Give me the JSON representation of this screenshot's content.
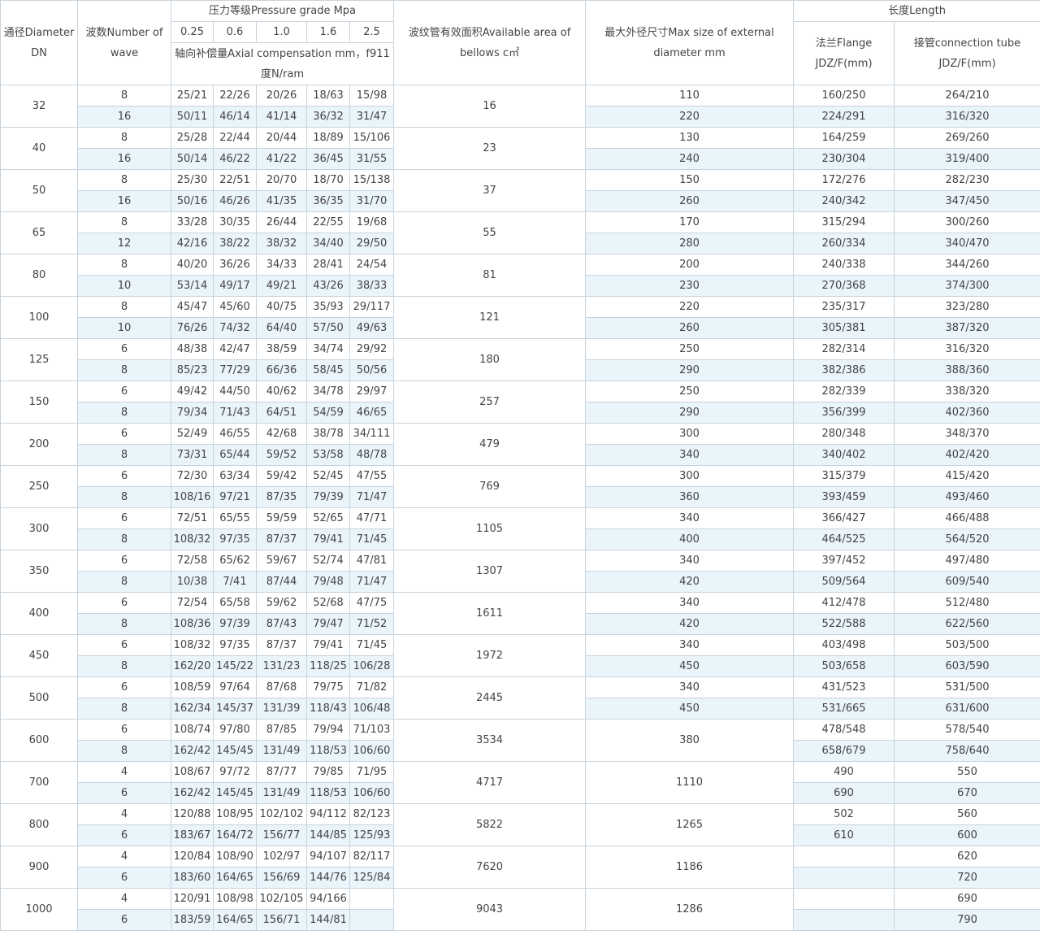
{
  "header": {
    "diameter": "通径Diameter DN",
    "waves": "波数Number of wave",
    "pressure_grade": "压力等级Pressure grade Mpa",
    "pressure_values": [
      "0.25",
      "0.6",
      "1.0",
      "1.6",
      "2.5"
    ],
    "axial": "轴向补偿量Axial compensation mm，f911度N/ram",
    "area": "波纹管有效面积Available area of bellows c㎡",
    "max_size": "最大外径尺寸Max size of external diameter mm",
    "length": "长度Length",
    "flange": "法兰Flange JDZ/F(mm)",
    "tube": "接管connection tube JDZ/F(mm)"
  },
  "groups": [
    {
      "dn": 32,
      "area": 16,
      "max_size": [
        110,
        220
      ],
      "rows": [
        {
          "waves": 8,
          "comp": [
            "25/21",
            "22/26",
            "20/26",
            "18/63",
            "15/98"
          ],
          "flange": "160/250",
          "tube": "264/210"
        },
        {
          "waves": 16,
          "comp": [
            "50/11",
            "46/14",
            "41/14",
            "36/32",
            "31/47"
          ],
          "flange": "224/291",
          "tube": "316/320"
        }
      ]
    },
    {
      "dn": 40,
      "area": 23,
      "max_size": [
        130,
        240
      ],
      "rows": [
        {
          "waves": 8,
          "comp": [
            "25/28",
            "22/44",
            "20/44",
            "18/89",
            "15/106"
          ],
          "flange": "164/259",
          "tube": "269/260"
        },
        {
          "waves": 16,
          "comp": [
            "50/14",
            "46/22",
            "41/22",
            "36/45",
            "31/55"
          ],
          "flange": "230/304",
          "tube": "319/400"
        }
      ]
    },
    {
      "dn": 50,
      "area": 37,
      "max_size": [
        150,
        260
      ],
      "rows": [
        {
          "waves": 8,
          "comp": [
            "25/30",
            "22/51",
            "20/70",
            "18/70",
            "15/138"
          ],
          "flange": "172/276",
          "tube": "282/230"
        },
        {
          "waves": 16,
          "comp": [
            "50/16",
            "46/26",
            "41/35",
            "36/35",
            "31/70"
          ],
          "flange": "240/342",
          "tube": "347/450"
        }
      ]
    },
    {
      "dn": 65,
      "area": 55,
      "max_size": [
        170,
        280
      ],
      "rows": [
        {
          "waves": 8,
          "comp": [
            "33/28",
            "30/35",
            "26/44",
            "22/55",
            "19/68"
          ],
          "flange": "315/294",
          "tube": "300/260"
        },
        {
          "waves": 12,
          "comp": [
            "42/16",
            "38/22",
            "38/32",
            "34/40",
            "29/50"
          ],
          "flange": "260/334",
          "tube": "340/470"
        }
      ]
    },
    {
      "dn": 80,
      "area": 81,
      "max_size": [
        200,
        230
      ],
      "rows": [
        {
          "waves": 8,
          "comp": [
            "40/20",
            "36/26",
            "34/33",
            "28/41",
            "24/54"
          ],
          "flange": "240/338",
          "tube": "344/260"
        },
        {
          "waves": 10,
          "comp": [
            "53/14",
            "49/17",
            "49/21",
            "43/26",
            "38/33"
          ],
          "flange": "270/368",
          "tube": "374/300"
        }
      ]
    },
    {
      "dn": 100,
      "area": 121,
      "max_size": [
        220,
        260
      ],
      "rows": [
        {
          "waves": 8,
          "comp": [
            "45/47",
            "45/60",
            "40/75",
            "35/93",
            "29/117"
          ],
          "flange": "235/317",
          "tube": "323/280"
        },
        {
          "waves": 10,
          "comp": [
            "76/26",
            "74/32",
            "64/40",
            "57/50",
            "49/63"
          ],
          "flange": "305/381",
          "tube": "387/320"
        }
      ]
    },
    {
      "dn": 125,
      "area": 180,
      "max_size": [
        250,
        290
      ],
      "rows": [
        {
          "waves": 6,
          "comp": [
            "48/38",
            "42/47",
            "38/59",
            "34/74",
            "29/92"
          ],
          "flange": "282/314",
          "tube": "316/320"
        },
        {
          "waves": 8,
          "comp": [
            "85/23",
            "77/29",
            "66/36",
            "58/45",
            "50/56"
          ],
          "flange": "382/386",
          "tube": "388/360"
        }
      ]
    },
    {
      "dn": 150,
      "area": 257,
      "max_size": [
        250,
        290
      ],
      "rows": [
        {
          "waves": 6,
          "comp": [
            "49/42",
            "44/50",
            "40/62",
            "34/78",
            "29/97"
          ],
          "flange": "282/339",
          "tube": "338/320"
        },
        {
          "waves": 8,
          "comp": [
            "79/34",
            "71/43",
            "64/51",
            "54/59",
            "46/65"
          ],
          "flange": "356/399",
          "tube": "402/360"
        }
      ]
    },
    {
      "dn": 200,
      "area": 479,
      "max_size": [
        300,
        340
      ],
      "rows": [
        {
          "waves": 6,
          "comp": [
            "52/49",
            "46/55",
            "42/68",
            "38/78",
            "34/111"
          ],
          "flange": "280/348",
          "tube": "348/370"
        },
        {
          "waves": 8,
          "comp": [
            "73/31",
            "65/44",
            "59/52",
            "53/58",
            "48/78"
          ],
          "flange": "340/402",
          "tube": "402/420"
        }
      ]
    },
    {
      "dn": 250,
      "area": 769,
      "max_size": [
        300,
        360
      ],
      "rows": [
        {
          "waves": 6,
          "comp": [
            "72/30",
            "63/34",
            "59/42",
            "52/45",
            "47/55"
          ],
          "flange": "315/379",
          "tube": "415/420"
        },
        {
          "waves": 8,
          "comp": [
            "108/16",
            "97/21",
            "87/35",
            "79/39",
            "71/47"
          ],
          "flange": "393/459",
          "tube": "493/460"
        }
      ]
    },
    {
      "dn": 300,
      "area": 1105,
      "max_size": [
        340,
        400
      ],
      "rows": [
        {
          "waves": 6,
          "comp": [
            "72/51",
            "65/55",
            "59/59",
            "52/65",
            "47/71"
          ],
          "flange": "366/427",
          "tube": "466/488"
        },
        {
          "waves": 8,
          "comp": [
            "108/32",
            "97/35",
            "87/37",
            "79/41",
            "71/45"
          ],
          "flange": "464/525",
          "tube": "564/520"
        }
      ]
    },
    {
      "dn": 350,
      "area": 1307,
      "max_size": [
        340,
        420
      ],
      "rows": [
        {
          "waves": 6,
          "comp": [
            "72/58",
            "65/62",
            "59/67",
            "52/74",
            "47/81"
          ],
          "flange": "397/452",
          "tube": "497/480"
        },
        {
          "waves": 8,
          "comp": [
            "10/38",
            "7/41",
            "87/44",
            "79/48",
            "71/47"
          ],
          "flange": "509/564",
          "tube": "609/540"
        }
      ]
    },
    {
      "dn": 400,
      "area": 1611,
      "max_size": [
        340,
        420
      ],
      "rows": [
        {
          "waves": 6,
          "comp": [
            "72/54",
            "65/58",
            "59/62",
            "52/68",
            "47/75"
          ],
          "flange": "412/478",
          "tube": "512/480"
        },
        {
          "waves": 8,
          "comp": [
            "108/36",
            "97/39",
            "87/43",
            "79/47",
            "71/52"
          ],
          "flange": "522/588",
          "tube": "622/560"
        }
      ]
    },
    {
      "dn": 450,
      "area": 1972,
      "max_size": [
        340,
        450
      ],
      "rows": [
        {
          "waves": 6,
          "comp": [
            "108/32",
            "97/35",
            "87/37",
            "79/41",
            "71/45"
          ],
          "flange": "403/498",
          "tube": "503/500"
        },
        {
          "waves": 8,
          "comp": [
            "162/20",
            "145/22",
            "131/23",
            "118/25",
            "106/28"
          ],
          "flange": "503/658",
          "tube": "603/590"
        }
      ]
    },
    {
      "dn": 500,
      "area": 2445,
      "max_size": [
        340,
        450
      ],
      "rows": [
        {
          "waves": 6,
          "comp": [
            "108/59",
            "97/64",
            "87/68",
            "79/75",
            "71/82"
          ],
          "flange": "431/523",
          "tube": "531/500"
        },
        {
          "waves": 8,
          "comp": [
            "162/34",
            "145/37",
            "131/39",
            "118/43",
            "106/48"
          ],
          "flange": "531/665",
          "tube": "631/600"
        }
      ]
    },
    {
      "dn": 600,
      "area": 3534,
      "max_size": [
        380
      ],
      "rows": [
        {
          "waves": 6,
          "comp": [
            "108/74",
            "97/80",
            "87/85",
            "79/94",
            "71/103"
          ],
          "flange": "478/548",
          "tube": "578/540"
        },
        {
          "waves": 8,
          "comp": [
            "162/42",
            "145/45",
            "131/49",
            "118/53",
            "106/60"
          ],
          "flange": "658/679",
          "tube": "758/640"
        }
      ]
    },
    {
      "dn": 700,
      "area": 4717,
      "max_size": [
        1110
      ],
      "rows": [
        {
          "waves": 4,
          "comp": [
            "108/67",
            "97/72",
            "87/77",
            "79/85",
            "71/95"
          ],
          "flange": 490,
          "tube": 550
        },
        {
          "waves": 6,
          "comp": [
            "162/42",
            "145/45",
            "131/49",
            "118/53",
            "106/60"
          ],
          "flange": 690,
          "tube": 670
        }
      ]
    },
    {
      "dn": 800,
      "area": 5822,
      "max_size": [
        1265
      ],
      "rows": [
        {
          "waves": 4,
          "comp": [
            "120/88",
            "108/95",
            "102/102",
            "94/112",
            "82/123"
          ],
          "flange": 502,
          "tube": 560
        },
        {
          "waves": 6,
          "comp": [
            "183/67",
            "164/72",
            "156/77",
            "144/85",
            "125/93"
          ],
          "flange": 610,
          "tube": 600
        }
      ]
    },
    {
      "dn": 900,
      "area": 7620,
      "max_size": [
        1186
      ],
      "rows": [
        {
          "waves": 4,
          "comp": [
            "120/84",
            "108/90",
            "102/97",
            "94/107",
            "82/117"
          ],
          "flange": null,
          "tube": 620
        },
        {
          "waves": 6,
          "comp": [
            "183/60",
            "164/65",
            "156/69",
            "144/76",
            "125/84"
          ],
          "flange": null,
          "tube": 720
        }
      ]
    },
    {
      "dn": 1000,
      "area": 9043,
      "max_size": [
        1286
      ],
      "rows": [
        {
          "waves": 4,
          "comp": [
            "120/91",
            "108/98",
            "102/105",
            "94/166",
            null
          ],
          "flange": null,
          "tube": 690
        },
        {
          "waves": 6,
          "comp": [
            "183/59",
            "164/65",
            "156/71",
            "144/81",
            null
          ],
          "flange": null,
          "tube": 790
        }
      ]
    }
  ]
}
